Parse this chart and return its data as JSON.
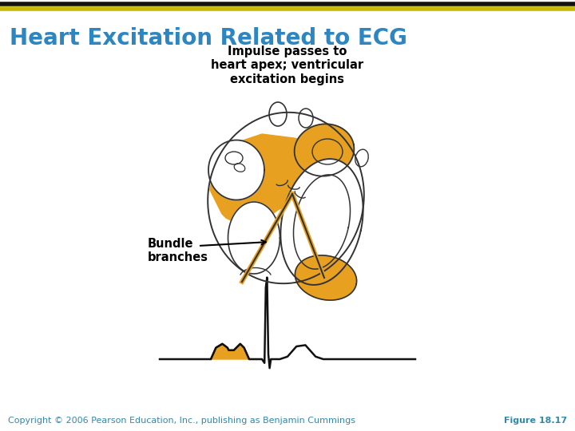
{
  "title": "Heart Excitation Related to ECG",
  "title_color": "#2E86C1",
  "title_fontsize": 20,
  "background_color": "#FFFFFF",
  "top_bar_color1": "#111111",
  "top_bar_color2": "#c8b800",
  "annotation_top": "Impulse passes to\nheart apex; ventricular\nexcitation begins",
  "annotation_bundle": "Bundle\nbranches",
  "annotation_color": "#000000",
  "annotation_fontsize": 10.5,
  "heart_fill_color": "#E8A020",
  "heart_outline_color": "#333333",
  "ecg_color": "#111111",
  "ecg_fill_color": "#E8A020",
  "footer_left": "Copyright © 2006 Pearson Education, Inc., publishing as Benjamin Cummings",
  "footer_right": "Figure 18.17",
  "footer_color": "#3388AA",
  "footer_fontsize": 8
}
